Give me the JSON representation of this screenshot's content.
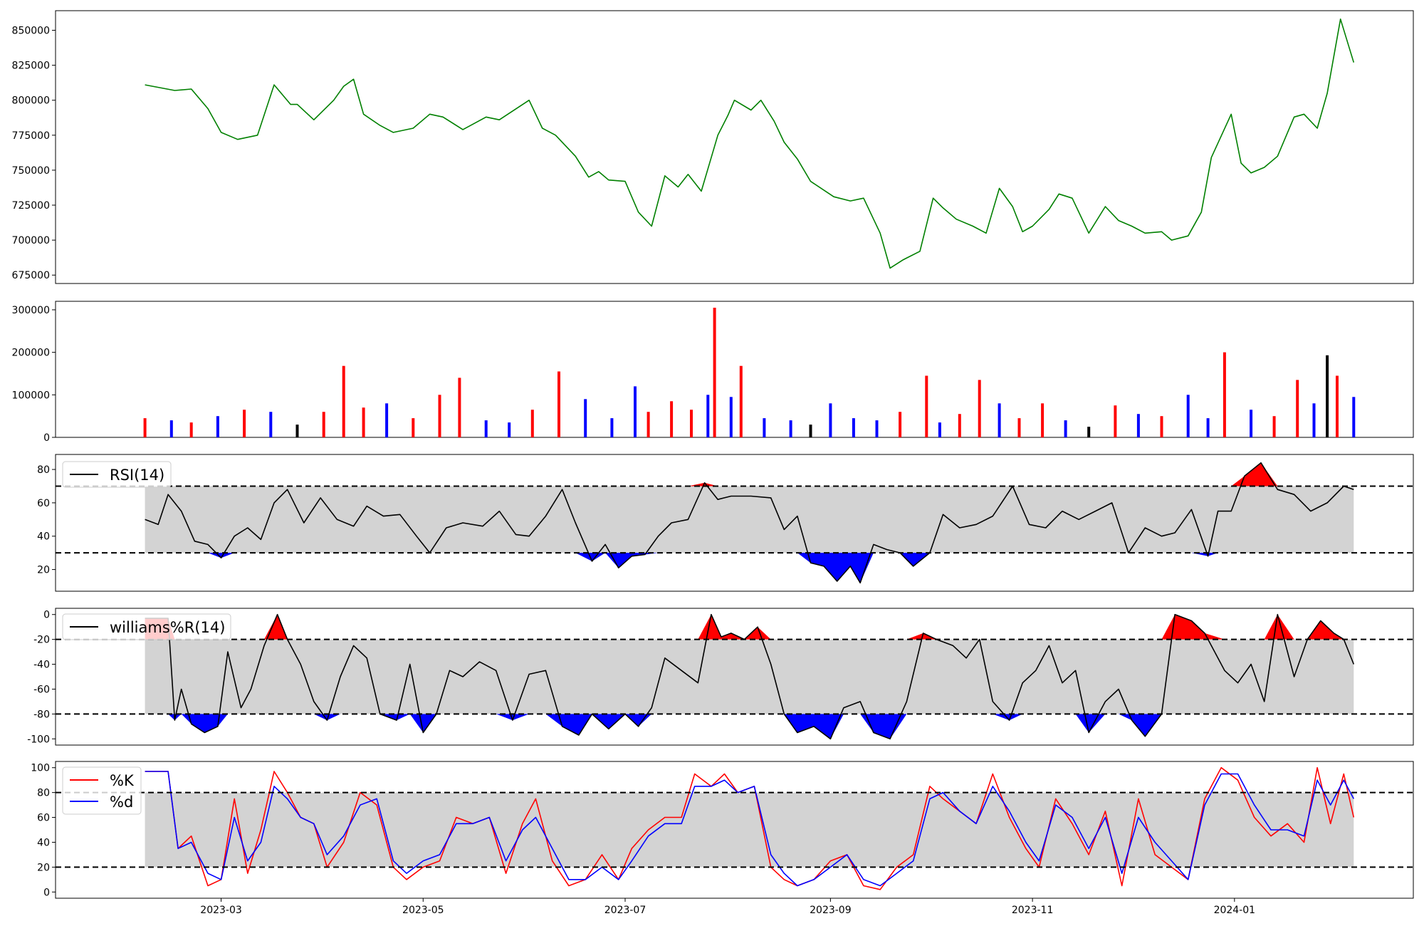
{
  "chart_data": [
    {
      "type": "line",
      "name": "price",
      "color": "#008000",
      "yticks": [
        675000,
        700000,
        725000,
        750000,
        775000,
        800000,
        825000,
        850000
      ],
      "ylim": [
        669000,
        864000
      ],
      "x": [
        "2023-02-06",
        "2023-02-15",
        "2023-02-20",
        "2023-02-25",
        "2023-03-01",
        "2023-03-06",
        "2023-03-12",
        "2023-03-17",
        "2023-03-22",
        "2023-03-24",
        "2023-03-29",
        "2023-04-04",
        "2023-04-07",
        "2023-04-10",
        "2023-04-13",
        "2023-04-18",
        "2023-04-22",
        "2023-04-28",
        "2023-05-03",
        "2023-05-07",
        "2023-05-13",
        "2023-05-20",
        "2023-05-24",
        "2023-06-02",
        "2023-06-06",
        "2023-06-10",
        "2023-06-16",
        "2023-06-20",
        "2023-06-23",
        "2023-06-26",
        "2023-07-01",
        "2023-07-05",
        "2023-07-09",
        "2023-07-13",
        "2023-07-17",
        "2023-07-20",
        "2023-07-24",
        "2023-07-29",
        "2023-08-01",
        "2023-08-03",
        "2023-08-08",
        "2023-08-11",
        "2023-08-15",
        "2023-08-18",
        "2023-08-22",
        "2023-08-26",
        "2023-09-02",
        "2023-09-07",
        "2023-09-11",
        "2023-09-16",
        "2023-09-19",
        "2023-09-23",
        "2023-09-28",
        "2023-10-02",
        "2023-10-05",
        "2023-10-09",
        "2023-10-14",
        "2023-10-18",
        "2023-10-22",
        "2023-10-26",
        "2023-10-29",
        "2023-11-01",
        "2023-11-06",
        "2023-11-09",
        "2023-11-13",
        "2023-11-18",
        "2023-11-23",
        "2023-11-27",
        "2023-12-01",
        "2023-12-05",
        "2023-12-10",
        "2023-12-13",
        "2023-12-18",
        "2023-12-22",
        "2023-12-25",
        "2023-12-31",
        "2024-01-03",
        "2024-01-06",
        "2024-01-10",
        "2024-01-14",
        "2024-01-19",
        "2024-01-22",
        "2024-01-26",
        "2024-01-29",
        "2024-02-02",
        "2024-02-06"
      ],
      "y": [
        811000,
        807000,
        808000,
        794000,
        777000,
        772000,
        775000,
        811000,
        797000,
        797000,
        786000,
        800000,
        810000,
        815000,
        790000,
        782000,
        777000,
        780000,
        790000,
        788000,
        779000,
        788000,
        786000,
        800000,
        780000,
        775000,
        760000,
        745000,
        749000,
        743000,
        742000,
        720000,
        710000,
        746000,
        738000,
        747000,
        735000,
        775000,
        789000,
        800000,
        793000,
        800000,
        785000,
        770000,
        758000,
        742000,
        731000,
        728000,
        730000,
        705000,
        680000,
        686000,
        692000,
        730000,
        723000,
        715000,
        710000,
        705000,
        737000,
        724000,
        706000,
        710000,
        722000,
        733000,
        730000,
        705000,
        724000,
        714000,
        710000,
        705000,
        706000,
        700000,
        703000,
        720000,
        759000,
        790000,
        755000,
        748000,
        752000,
        760000,
        788000,
        790000,
        780000,
        805000,
        858000,
        827000
      ]
    },
    {
      "type": "bar",
      "name": "volume",
      "yticks": [
        0,
        100000,
        200000,
        300000
      ],
      "ylim": [
        0,
        320000
      ],
      "colors": {
        "up": "#ff0000",
        "down": "#0000ff",
        "flat": "#000000"
      },
      "x": [
        "2023-02-06",
        "2023-02-14",
        "2023-02-20",
        "2023-02-28",
        "2023-03-08",
        "2023-03-16",
        "2023-03-24",
        "2023-04-01",
        "2023-04-07",
        "2023-04-13",
        "2023-04-20",
        "2023-04-28",
        "2023-05-06",
        "2023-05-12",
        "2023-05-20",
        "2023-05-27",
        "2023-06-03",
        "2023-06-11",
        "2023-06-19",
        "2023-06-27",
        "2023-07-04",
        "2023-07-08",
        "2023-07-15",
        "2023-07-21",
        "2023-07-26",
        "2023-07-28",
        "2023-08-02",
        "2023-08-05",
        "2023-08-12",
        "2023-08-20",
        "2023-08-26",
        "2023-09-01",
        "2023-09-08",
        "2023-09-15",
        "2023-09-22",
        "2023-09-30",
        "2023-10-04",
        "2023-10-10",
        "2023-10-16",
        "2023-10-22",
        "2023-10-28",
        "2023-11-04",
        "2023-11-11",
        "2023-11-18",
        "2023-11-26",
        "2023-12-03",
        "2023-12-10",
        "2023-12-18",
        "2023-12-24",
        "2023-12-29",
        "2024-01-06",
        "2024-01-13",
        "2024-01-20",
        "2024-01-25",
        "2024-01-29",
        "2024-02-01",
        "2024-02-06"
      ],
      "y": [
        45000,
        40000,
        35000,
        50000,
        65000,
        60000,
        30000,
        60000,
        168000,
        70000,
        80000,
        45000,
        100000,
        140000,
        40000,
        35000,
        65000,
        155000,
        90000,
        45000,
        120000,
        60000,
        85000,
        65000,
        100000,
        305000,
        95000,
        168000,
        45000,
        40000,
        30000,
        80000,
        45000,
        40000,
        60000,
        145000,
        35000,
        55000,
        135000,
        80000,
        45000,
        80000,
        40000,
        25000,
        75000,
        55000,
        50000,
        100000,
        45000,
        200000,
        65000,
        50000,
        135000,
        80000,
        193000,
        145000,
        95000
      ],
      "direction": [
        "up",
        "down",
        "up",
        "down",
        "up",
        "down",
        "flat",
        "up",
        "up",
        "up",
        "down",
        "up",
        "up",
        "up",
        "down",
        "down",
        "up",
        "up",
        "down",
        "down",
        "down",
        "up",
        "up",
        "up",
        "down",
        "up",
        "down",
        "up",
        "down",
        "down",
        "flat",
        "down",
        "down",
        "down",
        "up",
        "up",
        "down",
        "up",
        "up",
        "down",
        "up",
        "up",
        "down",
        "flat",
        "up",
        "down",
        "up",
        "down",
        "down",
        "up",
        "down",
        "up",
        "up",
        "down",
        "flat",
        "up",
        "down"
      ]
    },
    {
      "type": "line",
      "name": "RSI(14)",
      "legend": "RSI(14)",
      "color": "#000000",
      "yticks": [
        20,
        40,
        60,
        80
      ],
      "ylim": [
        7,
        89
      ],
      "levels": {
        "upper": 70,
        "lower": 30
      },
      "band_color": "#d3d3d3",
      "x": [
        "2023-02-06",
        "2023-02-10",
        "2023-02-13",
        "2023-02-17",
        "2023-02-21",
        "2023-02-25",
        "2023-03-01",
        "2023-03-05",
        "2023-03-09",
        "2023-03-13",
        "2023-03-17",
        "2023-03-21",
        "2023-03-26",
        "2023-03-31",
        "2023-04-05",
        "2023-04-10",
        "2023-04-14",
        "2023-04-19",
        "2023-04-24",
        "2023-04-29",
        "2023-05-03",
        "2023-05-08",
        "2023-05-13",
        "2023-05-19",
        "2023-05-24",
        "2023-05-29",
        "2023-06-02",
        "2023-06-07",
        "2023-06-12",
        "2023-06-16",
        "2023-06-21",
        "2023-06-25",
        "2023-06-29",
        "2023-07-03",
        "2023-07-07",
        "2023-07-11",
        "2023-07-15",
        "2023-07-20",
        "2023-07-25",
        "2023-07-29",
        "2023-08-02",
        "2023-08-08",
        "2023-08-14",
        "2023-08-18",
        "2023-08-22",
        "2023-08-26",
        "2023-08-30",
        "2023-09-03",
        "2023-09-07",
        "2023-09-10",
        "2023-09-14",
        "2023-09-18",
        "2023-09-22",
        "2023-09-26",
        "2023-10-01",
        "2023-10-05",
        "2023-10-10",
        "2023-10-15",
        "2023-10-20",
        "2023-10-26",
        "2023-10-31",
        "2023-11-05",
        "2023-11-10",
        "2023-11-15",
        "2023-11-20",
        "2023-11-25",
        "2023-11-30",
        "2023-12-05",
        "2023-12-10",
        "2023-12-14",
        "2023-12-19",
        "2023-12-24",
        "2023-12-27",
        "2023-12-31",
        "2024-01-04",
        "2024-01-09",
        "2024-01-14",
        "2024-01-19",
        "2024-01-24",
        "2024-01-29",
        "2024-02-03",
        "2024-02-06"
      ],
      "y": [
        50,
        47,
        65,
        55,
        37,
        35,
        27,
        40,
        45,
        38,
        60,
        68,
        48,
        63,
        50,
        46,
        58,
        52,
        53,
        40,
        30,
        45,
        48,
        46,
        55,
        41,
        40,
        52,
        68,
        48,
        25,
        35,
        21,
        28,
        29,
        40,
        48,
        50,
        72,
        62,
        64,
        64,
        63,
        44,
        52,
        24,
        22,
        13,
        22,
        12,
        35,
        32,
        30,
        22,
        30,
        53,
        45,
        47,
        52,
        70,
        47,
        45,
        55,
        50,
        55,
        60,
        30,
        45,
        40,
        42,
        56,
        28,
        55,
        55,
        76,
        84,
        68,
        65,
        55,
        60,
        70,
        68
      ]
    },
    {
      "type": "line",
      "name": "williams%R(14)",
      "legend": "williams%R(14)",
      "color": "#000000",
      "yticks": [
        -100,
        -80,
        -60,
        -40,
        -20,
        0
      ],
      "ylim": [
        -105,
        5
      ],
      "levels": {
        "upper": -20,
        "lower": -80
      },
      "band_color": "#d3d3d3",
      "x": [
        "2023-02-06",
        "2023-02-13",
        "2023-02-15",
        "2023-02-17",
        "2023-02-20",
        "2023-02-24",
        "2023-02-28",
        "2023-03-03",
        "2023-03-07",
        "2023-03-10",
        "2023-03-14",
        "2023-03-18",
        "2023-03-21",
        "2023-03-25",
        "2023-03-29",
        "2023-04-02",
        "2023-04-06",
        "2023-04-10",
        "2023-04-14",
        "2023-04-18",
        "2023-04-23",
        "2023-04-27",
        "2023-05-01",
        "2023-05-05",
        "2023-05-09",
        "2023-05-13",
        "2023-05-18",
        "2023-05-23",
        "2023-05-28",
        "2023-06-02",
        "2023-06-07",
        "2023-06-12",
        "2023-06-17",
        "2023-06-21",
        "2023-06-26",
        "2023-07-01",
        "2023-07-05",
        "2023-07-09",
        "2023-07-13",
        "2023-07-18",
        "2023-07-23",
        "2023-07-27",
        "2023-07-30",
        "2023-08-02",
        "2023-08-06",
        "2023-08-10",
        "2023-08-14",
        "2023-08-18",
        "2023-08-22",
        "2023-08-27",
        "2023-09-01",
        "2023-09-05",
        "2023-09-10",
        "2023-09-14",
        "2023-09-19",
        "2023-09-24",
        "2023-09-29",
        "2023-10-03",
        "2023-10-08",
        "2023-10-12",
        "2023-10-16",
        "2023-10-20",
        "2023-10-25",
        "2023-10-29",
        "2023-11-02",
        "2023-11-06",
        "2023-11-10",
        "2023-11-14",
        "2023-11-18",
        "2023-11-23",
        "2023-11-27",
        "2023-12-01",
        "2023-12-05",
        "2023-12-10",
        "2023-12-14",
        "2023-12-19",
        "2023-12-23",
        "2023-12-29",
        "2024-01-02",
        "2024-01-06",
        "2024-01-10",
        "2024-01-14",
        "2024-01-19",
        "2024-01-23",
        "2024-01-27",
        "2024-01-31",
        "2024-02-03",
        "2024-02-06"
      ],
      "y": [
        -3,
        -3,
        -85,
        -60,
        -88,
        -95,
        -90,
        -30,
        -75,
        -60,
        -25,
        0,
        -20,
        -40,
        -70,
        -85,
        -50,
        -25,
        -35,
        -80,
        -85,
        -40,
        -95,
        -80,
        -45,
        -50,
        -38,
        -45,
        -85,
        -48,
        -45,
        -90,
        -97,
        -80,
        -92,
        -80,
        -90,
        -75,
        -35,
        -45,
        -55,
        0,
        -18,
        -15,
        -20,
        -10,
        -40,
        -80,
        -95,
        -90,
        -100,
        -75,
        -70,
        -95,
        -100,
        -70,
        -15,
        -20,
        -25,
        -35,
        -20,
        -70,
        -85,
        -55,
        -45,
        -25,
        -55,
        -45,
        -95,
        -70,
        -60,
        -85,
        -98,
        -80,
        0,
        -5,
        -15,
        -45,
        -55,
        -40,
        -70,
        0,
        -50,
        -20,
        -5,
        -15,
        -20,
        -40
      ]
    },
    {
      "type": "line",
      "name": "stochastic",
      "yticks": [
        0,
        20,
        40,
        60,
        80,
        100
      ],
      "ylim": [
        -5,
        105
      ],
      "levels": {
        "upper": 80,
        "lower": 20
      },
      "band_color": "#d3d3d3",
      "x": [
        "2023-02-06",
        "2023-02-13",
        "2023-02-16",
        "2023-02-20",
        "2023-02-25",
        "2023-03-01",
        "2023-03-05",
        "2023-03-09",
        "2023-03-13",
        "2023-03-17",
        "2023-03-21",
        "2023-03-25",
        "2023-03-29",
        "2023-04-02",
        "2023-04-07",
        "2023-04-12",
        "2023-04-17",
        "2023-04-22",
        "2023-04-26",
        "2023-05-01",
        "2023-05-06",
        "2023-05-11",
        "2023-05-16",
        "2023-05-21",
        "2023-05-26",
        "2023-05-31",
        "2023-06-04",
        "2023-06-09",
        "2023-06-14",
        "2023-06-19",
        "2023-06-24",
        "2023-06-29",
        "2023-07-03",
        "2023-07-08",
        "2023-07-13",
        "2023-07-18",
        "2023-07-22",
        "2023-07-27",
        "2023-07-31",
        "2023-08-04",
        "2023-08-09",
        "2023-08-14",
        "2023-08-18",
        "2023-08-22",
        "2023-08-27",
        "2023-09-01",
        "2023-09-06",
        "2023-09-11",
        "2023-09-16",
        "2023-09-21",
        "2023-09-26",
        "2023-10-01",
        "2023-10-05",
        "2023-10-10",
        "2023-10-15",
        "2023-10-20",
        "2023-10-25",
        "2023-10-30",
        "2023-11-03",
        "2023-11-08",
        "2023-11-13",
        "2023-11-18",
        "2023-11-23",
        "2023-11-28",
        "2023-12-03",
        "2023-12-08",
        "2023-12-13",
        "2023-12-18",
        "2023-12-23",
        "2023-12-28",
        "2024-01-02",
        "2024-01-07",
        "2024-01-12",
        "2024-01-17",
        "2024-01-22",
        "2024-01-26",
        "2024-01-30",
        "2024-02-03",
        "2024-02-06"
      ],
      "series": [
        {
          "name": "%K",
          "color": "#ff0000",
          "values": [
            97,
            97,
            35,
            45,
            5,
            10,
            75,
            15,
            50,
            97,
            80,
            60,
            55,
            20,
            40,
            80,
            70,
            20,
            10,
            20,
            25,
            60,
            55,
            60,
            15,
            55,
            75,
            25,
            5,
            10,
            30,
            10,
            35,
            50,
            60,
            60,
            95,
            85,
            95,
            80,
            85,
            20,
            10,
            5,
            10,
            25,
            30,
            5,
            2,
            20,
            30,
            85,
            75,
            65,
            55,
            95,
            60,
            35,
            20,
            75,
            55,
            30,
            65,
            5,
            75,
            30,
            20,
            10,
            75,
            100,
            90,
            60,
            45,
            55,
            40,
            100,
            55,
            95,
            60
          ]
        },
        {
          "name": "%d",
          "color": "#0000ff",
          "values": [
            97,
            97,
            35,
            40,
            15,
            10,
            60,
            25,
            40,
            85,
            75,
            60,
            55,
            30,
            45,
            70,
            75,
            25,
            15,
            25,
            30,
            55,
            55,
            60,
            25,
            50,
            60,
            35,
            10,
            10,
            20,
            10,
            25,
            45,
            55,
            55,
            85,
            85,
            90,
            80,
            85,
            30,
            15,
            5,
            10,
            20,
            30,
            10,
            5,
            15,
            25,
            75,
            80,
            65,
            55,
            85,
            65,
            40,
            25,
            70,
            60,
            35,
            60,
            15,
            60,
            40,
            25,
            10,
            70,
            95,
            95,
            70,
            50,
            50,
            45,
            90,
            70,
            90,
            75
          ]
        }
      ]
    }
  ],
  "x_axis": {
    "ticks": [
      "2023-03",
      "2023-05",
      "2023-07",
      "2023-09",
      "2023-11",
      "2024-01"
    ]
  }
}
